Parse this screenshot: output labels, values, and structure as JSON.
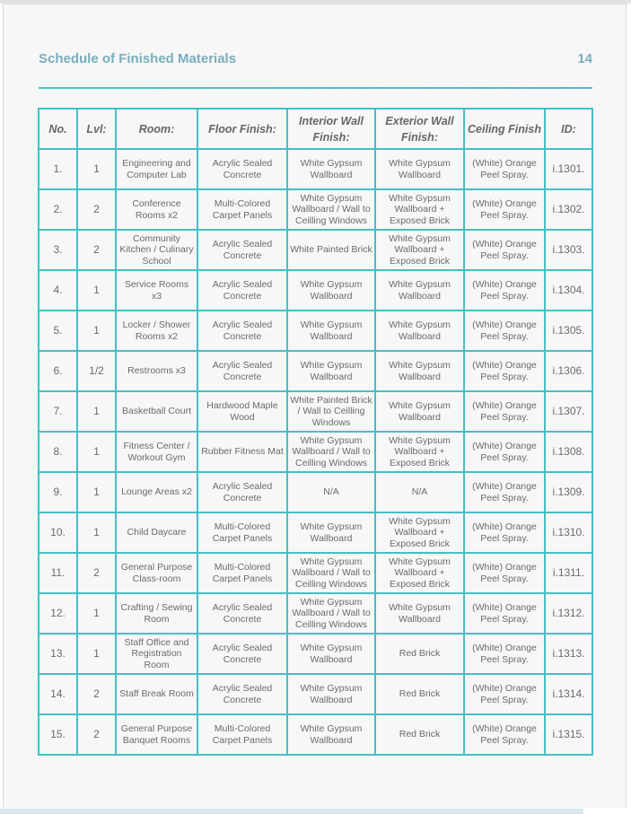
{
  "header": {
    "title": "Schedule of Finished Materials",
    "page_number": "14"
  },
  "colors": {
    "title": "#79aebd",
    "border_teal": "#41c6b6",
    "border_blue": "#5ab0dc"
  },
  "table": {
    "columns": [
      "No.",
      "Lvl:",
      "Room:",
      "Floor Finish:",
      "Interior Wall Finish:",
      "Exterior Wall Finish:",
      "Ceiling Finish",
      "ID:"
    ],
    "rows": [
      [
        "1.",
        "1",
        "Engineering and Computer Lab",
        "Acrylic Sealed Concrete",
        "White Gypsum Wallboard",
        "White Gypsum Wallboard",
        "(White) Orange Peel Spray.",
        "i.1301."
      ],
      [
        "2.",
        "2",
        "Conference Rooms x2",
        "Multi-Colored Carpet Panels",
        "White Gypsum Wallboard / Wall to Ceilling Windows",
        "White Gypsum Wallboard + Exposed Brick",
        "(White) Orange Peel Spray.",
        "i.1302."
      ],
      [
        "3.",
        "2",
        "Community Kitchen / Culinary School",
        "Acrylic Sealed Concrete",
        "White Painted Brick",
        "White Gypsum Wallboard + Exposed Brick",
        "(White) Orange Peel Spray.",
        "i.1303."
      ],
      [
        "4.",
        "1",
        "Service Rooms x3",
        "Acrylic Sealed Concrete",
        "White Gypsum Wallboard",
        "White Gypsum Wallboard",
        "(White) Orange Peel Spray.",
        "i.1304."
      ],
      [
        "5.",
        "1",
        "Locker / Shower Rooms x2",
        "Acrylic Sealed Concrete",
        "White Gypsum Wallboard",
        "White Gypsum Wallboard",
        "(White) Orange Peel Spray.",
        "i.1305."
      ],
      [
        "6.",
        "1/2",
        "Restrooms x3",
        "Acrylic Sealed Concrete",
        "White Gypsum Wallboard",
        "White Gypsum Wallboard",
        "(White) Orange Peel Spray.",
        "i.1306."
      ],
      [
        "7.",
        "1",
        "Basketball Court",
        "Hardwood Maple Wood",
        "White Painted Brick / Wall to Ceilling Windows",
        "White Gypsum Wallboard",
        "(White) Orange Peel Spray.",
        "i.1307."
      ],
      [
        "8.",
        "1",
        "Fitness Center / Workout Gym",
        "Rubber Fitness Mat",
        "White Gypsum Wallboard / Wall to Ceilling Windows",
        "White Gypsum Wallboard + Exposed Brick",
        "(White) Orange Peel Spray.",
        "i.1308."
      ],
      [
        "9.",
        "1",
        "Lounge Areas x2",
        "Acrylic Sealed Concrete",
        "N/A",
        "N/A",
        "(White) Orange Peel Spray.",
        "i.1309."
      ],
      [
        "10.",
        "1",
        "Child Daycare",
        "Multi-Colored Carpet Panels",
        "White Gypsum Wallboard",
        "White Gypsum Wallboard + Exposed Brick",
        "(White) Orange Peel Spray.",
        "i.1310."
      ],
      [
        "11.",
        "2",
        "General Purpose Class-room",
        "Multi-Colored Carpet Panels",
        "White Gypsum Wallboard / Wall to Ceilling Windows",
        "White Gypsum Wallboard + Exposed Brick",
        "(White) Orange Peel Spray.",
        "i.1311."
      ],
      [
        "12.",
        "1",
        "Crafting / Sewing Room",
        "Acrylic Sealed Concrete",
        "White Gypsum Wallboard / Wall to Ceilling Windows",
        "White Gypsum Wallboard",
        "(White) Orange Peel Spray.",
        "i.1312."
      ],
      [
        "13.",
        "1",
        "Staff Office and Registration Room",
        "Acrylic Sealed Concrete",
        "White Gypsum Wallboard",
        "Red Brick",
        "(White) Orange Peel Spray.",
        "i.1313."
      ],
      [
        "14.",
        "2",
        "Staff Break Room",
        "Acrylic Sealed Concrete",
        "White Gypsum Wallboard",
        "Red Brick",
        "(White) Orange Peel Spray.",
        "i.1314."
      ],
      [
        "15.",
        "2",
        "General Purpose Banquet Rooms",
        "Multi-Colored Carpet Panels",
        "White Gypsum Wallboard",
        "Red Brick",
        "(White) Orange Peel Spray.",
        "i.1315."
      ]
    ]
  }
}
